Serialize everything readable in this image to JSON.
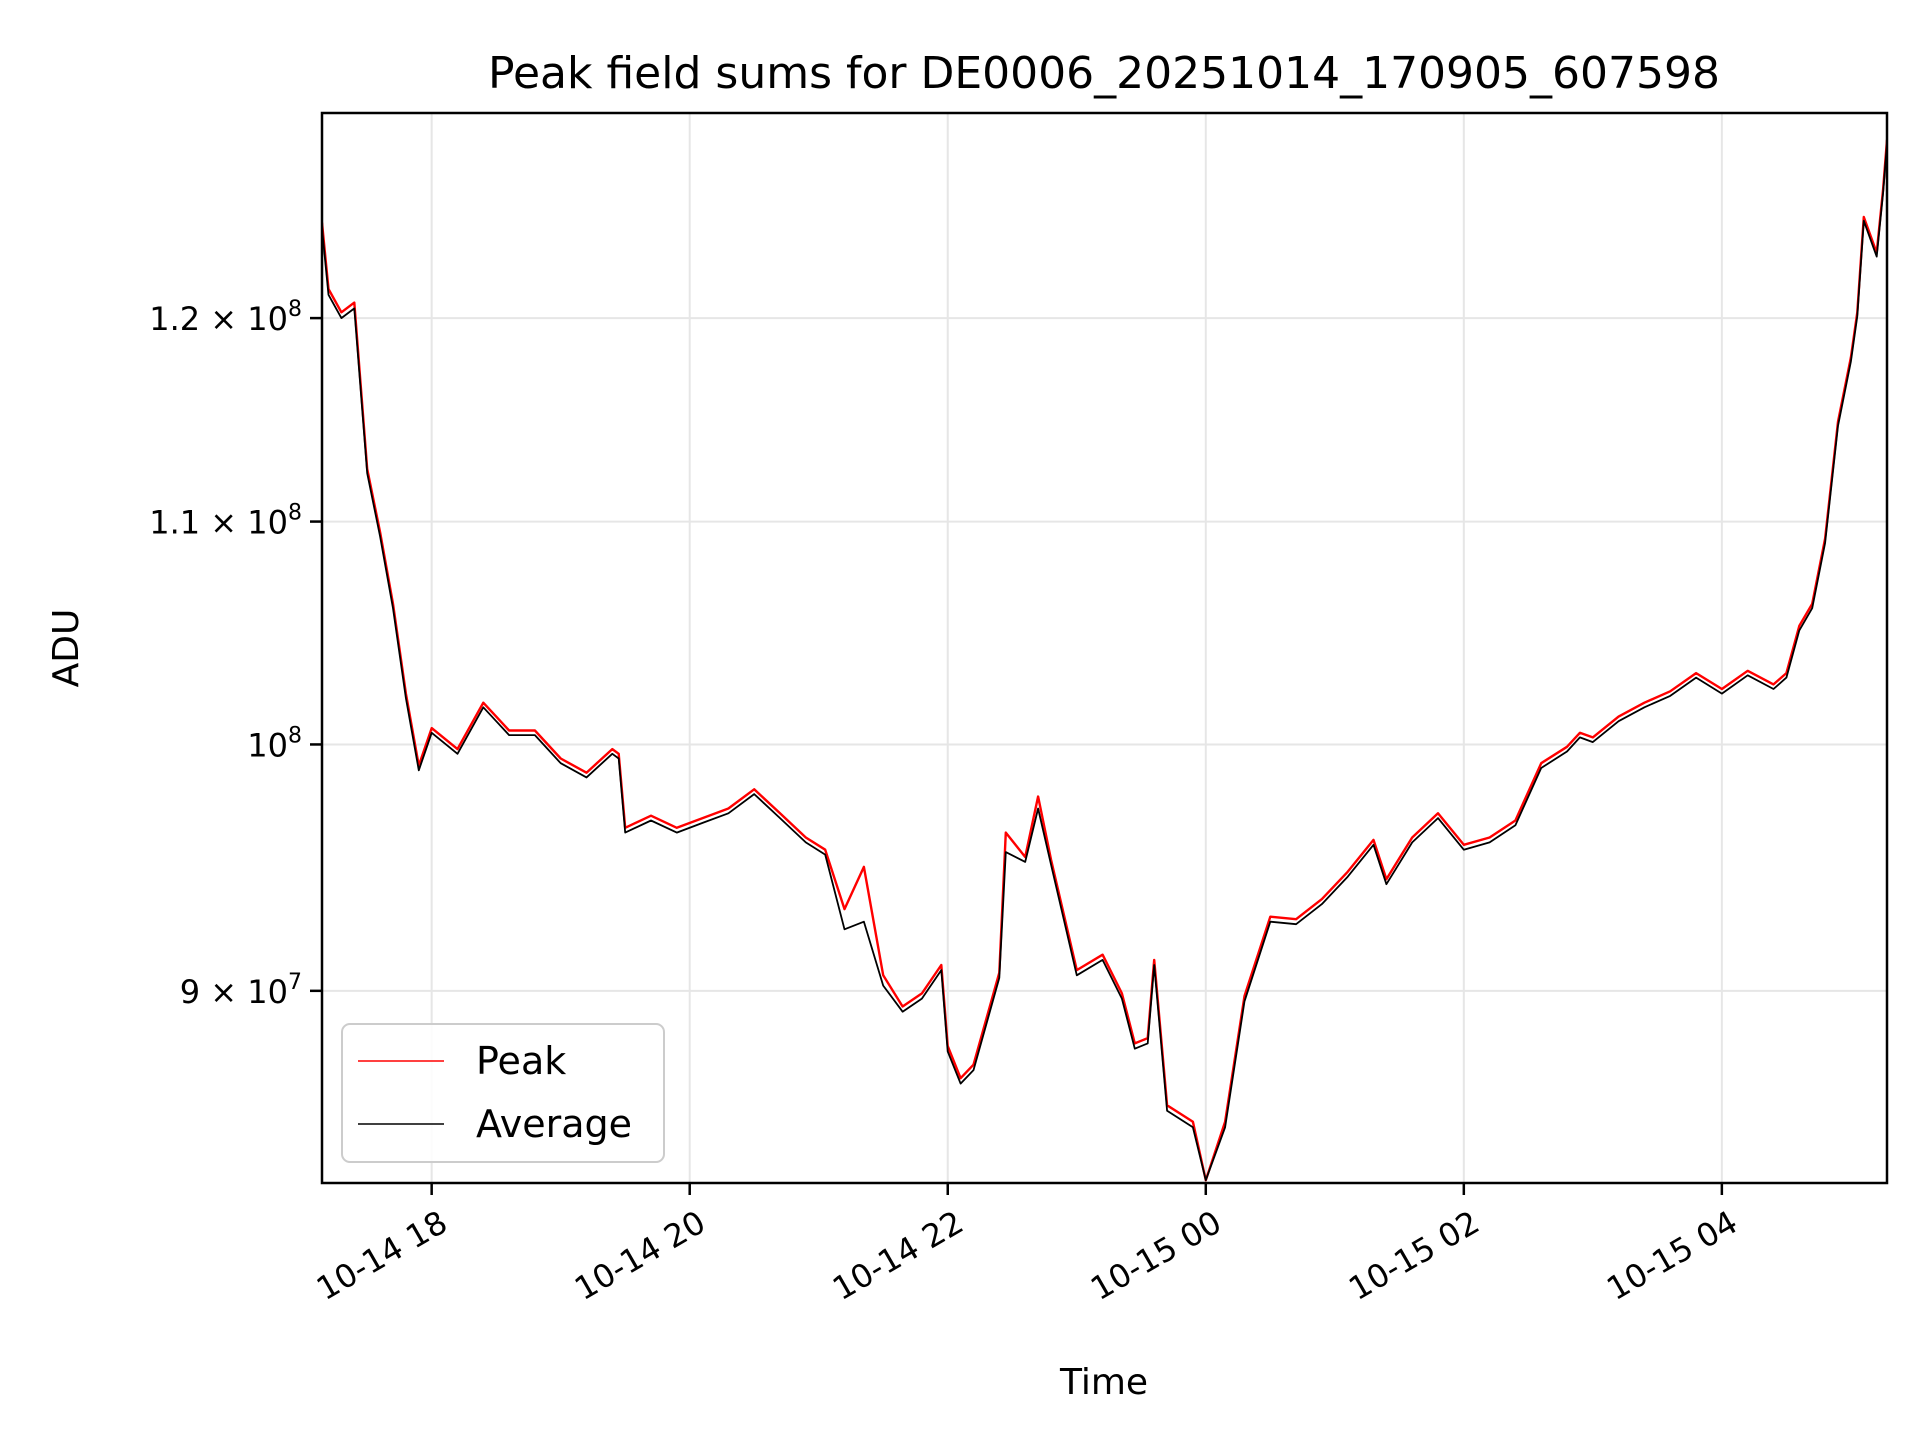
{
  "chart_data": {
    "type": "line",
    "title": "Peak field sums for DE0006_20251014_170905_607598",
    "xlabel": "Time",
    "ylabel": "ADU",
    "yscale": "log",
    "grid": true,
    "legend_position": "lower-left",
    "xlim_hours": [
      17.15,
      29.28
    ],
    "ylim": [
      82900000,
      131000000
    ],
    "x_ticks": [
      {
        "hour": 18,
        "label": "10-14 18"
      },
      {
        "hour": 20,
        "label": "10-14 20"
      },
      {
        "hour": 22,
        "label": "10-14 22"
      },
      {
        "hour": 24,
        "label": "10-15 00"
      },
      {
        "hour": 26,
        "label": "10-15 02"
      },
      {
        "hour": 28,
        "label": "10-15 04"
      }
    ],
    "y_ticks": [
      {
        "value": 90000000,
        "mantissa": "9",
        "exponent": "7"
      },
      {
        "value": 100000000,
        "mantissa": "",
        "exponent": "8"
      },
      {
        "value": 110000000,
        "mantissa": "1.1",
        "exponent": "8"
      },
      {
        "value": 120000000,
        "mantissa": "1.2",
        "exponent": "8"
      }
    ],
    "series": [
      {
        "name": "Peak",
        "color": "#ff0000",
        "x_hours": [
          17.15,
          17.2,
          17.3,
          17.4,
          17.5,
          17.6,
          17.7,
          17.8,
          17.9,
          18.0,
          18.2,
          18.4,
          18.5,
          18.6,
          18.8,
          19.0,
          19.2,
          19.4,
          19.45,
          19.5,
          19.7,
          19.9,
          20.1,
          20.3,
          20.5,
          20.7,
          20.9,
          21.05,
          21.2,
          21.35,
          21.5,
          21.65,
          21.8,
          21.95,
          22.0,
          22.1,
          22.2,
          22.4,
          22.45,
          22.6,
          22.7,
          22.8,
          23.0,
          23.2,
          23.35,
          23.45,
          23.55,
          23.6,
          23.7,
          23.8,
          23.9,
          24.0,
          24.15,
          24.3,
          24.5,
          24.7,
          24.9,
          25.1,
          25.3,
          25.4,
          25.6,
          25.8,
          26.0,
          26.2,
          26.4,
          26.6,
          26.8,
          26.9,
          27.0,
          27.2,
          27.4,
          27.6,
          27.8,
          28.0,
          28.2,
          28.4,
          28.5,
          28.6,
          28.7,
          28.8,
          28.9,
          29.0,
          29.05,
          29.1,
          29.2,
          29.25,
          29.28
        ],
        "values": [
          125000000,
          121500000,
          120300000,
          120800000,
          112500000,
          109500000,
          106200000,
          102200000,
          99100000,
          100700000,
          99800000,
          101800000,
          101200000,
          100600000,
          100600000,
          99400000,
          98800000,
          99800000,
          99600000,
          96500000,
          97000000,
          96500000,
          96900000,
          97300000,
          98100000,
          97100000,
          96100000,
          95600000,
          93200000,
          94900000,
          90600000,
          89400000,
          89900000,
          91000000,
          87900000,
          86700000,
          87200000,
          90700000,
          96300000,
          95300000,
          97800000,
          95200000,
          90800000,
          91400000,
          89900000,
          88000000,
          88200000,
          91200000,
          85700000,
          85400000,
          85100000,
          83000000,
          85100000,
          89800000,
          92900000,
          92800000,
          93600000,
          94700000,
          96000000,
          94400000,
          96100000,
          97100000,
          95800000,
          96100000,
          96800000,
          99200000,
          99900000,
          100500000,
          100300000,
          101200000,
          101800000,
          102300000,
          103100000,
          102400000,
          103200000,
          102600000,
          103100000,
          105200000,
          106200000,
          109200000,
          114800000,
          118000000,
          120300000,
          125300000,
          123400000,
          126800000,
          129500000
        ]
      },
      {
        "name": "Average",
        "color": "#000000",
        "x_hours": [
          17.15,
          17.2,
          17.3,
          17.4,
          17.5,
          17.6,
          17.7,
          17.8,
          17.9,
          18.0,
          18.2,
          18.4,
          18.5,
          18.6,
          18.8,
          19.0,
          19.2,
          19.4,
          19.45,
          19.5,
          19.7,
          19.9,
          20.1,
          20.3,
          20.5,
          20.7,
          20.9,
          21.05,
          21.2,
          21.35,
          21.5,
          21.65,
          21.8,
          21.95,
          22.0,
          22.1,
          22.2,
          22.4,
          22.45,
          22.6,
          22.7,
          22.8,
          23.0,
          23.2,
          23.35,
          23.45,
          23.55,
          23.6,
          23.7,
          23.8,
          23.9,
          24.0,
          24.15,
          24.3,
          24.5,
          24.7,
          24.9,
          25.1,
          25.3,
          25.4,
          25.6,
          25.8,
          26.0,
          26.2,
          26.4,
          26.6,
          26.8,
          26.9,
          27.0,
          27.2,
          27.4,
          27.6,
          27.8,
          28.0,
          28.2,
          28.4,
          28.5,
          28.6,
          28.7,
          28.8,
          28.9,
          29.0,
          29.05,
          29.1,
          29.2,
          29.25,
          29.28
        ],
        "values": [
          124700000,
          121200000,
          120000000,
          120500000,
          112300000,
          109300000,
          106000000,
          102000000,
          98900000,
          100500000,
          99600000,
          101600000,
          101000000,
          100400000,
          100400000,
          99200000,
          98600000,
          99600000,
          99400000,
          96300000,
          96800000,
          96300000,
          96700000,
          97100000,
          97900000,
          96900000,
          95900000,
          95400000,
          92400000,
          92700000,
          90200000,
          89200000,
          89700000,
          90800000,
          87700000,
          86500000,
          87000000,
          90500000,
          95500000,
          95100000,
          97300000,
          95000000,
          90600000,
          91200000,
          89700000,
          87800000,
          88000000,
          91000000,
          85500000,
          85200000,
          84900000,
          83000000,
          84900000,
          89600000,
          92700000,
          92600000,
          93400000,
          94500000,
          95800000,
          94200000,
          95900000,
          96900000,
          95600000,
          95900000,
          96600000,
          99000000,
          99700000,
          100300000,
          100100000,
          101000000,
          101600000,
          102100000,
          102900000,
          102200000,
          103000000,
          102400000,
          102900000,
          105000000,
          106000000,
          109000000,
          114600000,
          117800000,
          120100000,
          125100000,
          123200000,
          126600000,
          129300000
        ]
      }
    ]
  }
}
